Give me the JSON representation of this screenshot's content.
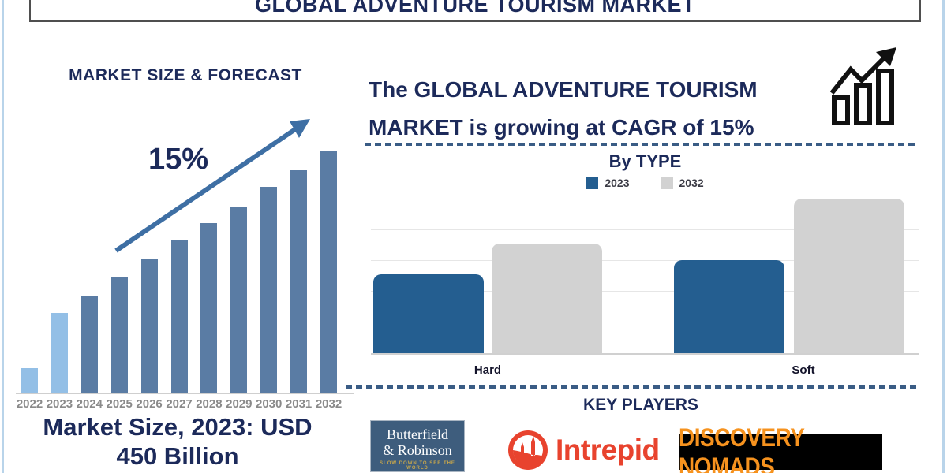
{
  "page": {
    "title": "GLOBAL ADVENTURE TOURISM MARKET",
    "accent_navy": "#1c2a5a",
    "edge_border_color": "#b9d4ea"
  },
  "left_panel": {
    "chart_title": "MARKET SIZE & FORECAST",
    "growth_label": "15%",
    "note_line1": "Market Size, 2023: USD",
    "note_line2": "450 Billion"
  },
  "right_panel": {
    "headline_line1": "The GLOBAL ADVENTURE TOURISM",
    "headline_line2": "MARKET is growing at CAGR of 15%",
    "by_type_title": "By TYPE",
    "key_players_title": "KEY PLAYERS",
    "logos": {
      "butterfield": {
        "line1": "Butterfield",
        "line2": "& Robinson",
        "tagline": "SLOW DOWN TO SEE THE WORLD",
        "bg": "#3e5d7d",
        "tagline_color": "#c8a74b"
      },
      "intrepid": {
        "label": "Intrepid",
        "color": "#e8432e"
      },
      "discovery_nomads": {
        "label": "DISCOVERY NOMADS",
        "bg": "#000000",
        "color": "#f6921e"
      }
    }
  },
  "chart_data": [
    {
      "id": "market_size_forecast",
      "type": "bar",
      "title": "MARKET SIZE & FORECAST",
      "categories": [
        "2022",
        "2023",
        "2024",
        "2025",
        "2026",
        "2027",
        "2028",
        "2029",
        "2030",
        "2031",
        "2032"
      ],
      "values_relative": [
        0.1,
        0.33,
        0.4,
        0.48,
        0.55,
        0.63,
        0.7,
        0.77,
        0.85,
        0.92,
        1.0
      ],
      "ylabel": "",
      "xlabel": "",
      "axis_labels_shown": "x only, no y-axis",
      "grid": false,
      "bar_color": "#5a7ca4",
      "highlighted_categories": [
        "2022",
        "2023"
      ],
      "highlight_color": "#93bfe6",
      "annotation": {
        "text": "15%",
        "arrow_color": "#3e6fa4"
      },
      "anchor_note": "Market Size, 2023: USD 450 Billion"
    },
    {
      "id": "by_type",
      "type": "bar",
      "title": "By TYPE",
      "categories": [
        "Hard",
        "Soft"
      ],
      "series": [
        {
          "name": "2023",
          "color": "#245e90",
          "values_relative": [
            0.51,
            0.6
          ]
        },
        {
          "name": "2032",
          "color": "#d2d2d2",
          "values_relative": [
            0.71,
            1.0
          ]
        }
      ],
      "legend_position": "top",
      "grid": true,
      "gridline_count": 5,
      "ylim_relative": [
        0,
        1
      ]
    }
  ]
}
